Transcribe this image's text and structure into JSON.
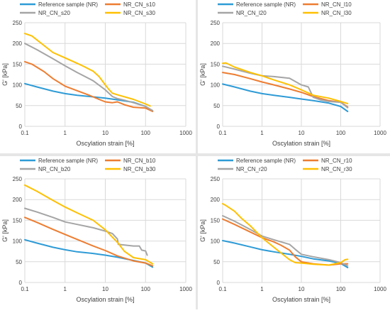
{
  "colors": {
    "reference": "#2E9BD6",
    "series10": "#ED7D31",
    "series20": "#A5A5A5",
    "series30": "#FFC000",
    "grid": "#D9D9D9",
    "text": "#404040"
  },
  "chart_data": [
    {
      "type": "line",
      "xscale": "log",
      "xlabel": "Oscylation strain [%]",
      "ylabel": "G' [kPa]",
      "xlim": [
        0.1,
        1000
      ],
      "ylim": [
        0,
        250
      ],
      "xticks": [
        "0.1",
        "1",
        "10",
        "100",
        "1000"
      ],
      "yticks": [
        "0",
        "50",
        "100",
        "150",
        "200",
        "250"
      ],
      "series": [
        {
          "name": "Reference sample (NR)",
          "color": "#2E9BD6",
          "x": [
            0.1,
            0.2,
            0.5,
            1,
            2,
            5,
            10,
            20,
            50,
            100,
            150
          ],
          "y": [
            103,
            95,
            85,
            79,
            75,
            71,
            68,
            64,
            58,
            48,
            37
          ]
        },
        {
          "name": "NR_CN_s10",
          "color": "#ED7D31",
          "x": [
            0.1,
            0.15,
            0.3,
            0.5,
            1,
            2,
            4,
            7,
            10,
            15,
            20,
            30,
            50,
            100,
            150
          ],
          "y": [
            156,
            150,
            132,
            115,
            97,
            86,
            75,
            65,
            59,
            57,
            59,
            52,
            46,
            44,
            36
          ]
        },
        {
          "name": "NR_CN_s20",
          "color": "#A5A5A5",
          "x": [
            0.1,
            0.2,
            0.5,
            1,
            2,
            5,
            10,
            15,
            20,
            30,
            50,
            100,
            150
          ],
          "y": [
            200,
            185,
            163,
            146,
            130,
            110,
            88,
            72,
            67,
            63,
            57,
            48,
            38
          ]
        },
        {
          "name": "NR_CN_s30",
          "color": "#FFC000",
          "x": [
            0.1,
            0.15,
            0.3,
            0.5,
            1,
            2,
            3,
            5,
            7,
            10,
            12,
            15,
            20,
            50,
            100,
            130
          ],
          "y": [
            224,
            218,
            195,
            178,
            165,
            152,
            144,
            133,
            120,
            100,
            90,
            80,
            76,
            65,
            54,
            49
          ]
        }
      ]
    },
    {
      "type": "line",
      "xscale": "log",
      "xlabel": "Oscylation strain [%]",
      "ylabel": "G' [kPa]",
      "xlim": [
        0.1,
        1000
      ],
      "ylim": [
        0,
        250
      ],
      "xticks": [
        "0.1",
        "1",
        "10",
        "100",
        "1000"
      ],
      "yticks": [
        "0",
        "50",
        "100",
        "150",
        "200",
        "250"
      ],
      "series": [
        {
          "name": "Reference sample (NR)",
          "color": "#2E9BD6",
          "x": [
            0.1,
            0.2,
            0.5,
            1,
            2,
            5,
            10,
            20,
            50,
            100,
            150
          ],
          "y": [
            102,
            95,
            85,
            79,
            75,
            70,
            66,
            62,
            56,
            48,
            36
          ]
        },
        {
          "name": "NR_CN_l10",
          "color": "#ED7D31",
          "x": [
            0.1,
            0.2,
            0.5,
            1,
            2,
            5,
            10,
            20,
            50,
            100,
            150
          ],
          "y": [
            130,
            125,
            115,
            107,
            100,
            90,
            82,
            72,
            62,
            58,
            47
          ]
        },
        {
          "name": "NR_CN_l20",
          "color": "#A5A5A5",
          "x": [
            0.1,
            0.2,
            0.5,
            1,
            2,
            5,
            10,
            15,
            20,
            30,
            50,
            100,
            150
          ],
          "y": [
            145,
            138,
            128,
            122,
            120,
            116,
            100,
            95,
            70,
            64,
            60,
            58,
            45
          ]
        },
        {
          "name": "NR_CN_l30",
          "color": "#FFC000",
          "x": [
            0.1,
            0.12,
            0.2,
            0.5,
            1,
            2,
            5,
            10,
            20,
            50,
            100,
            150
          ],
          "y": [
            152,
            153,
            143,
            130,
            122,
            112,
            100,
            88,
            75,
            68,
            60,
            55
          ]
        }
      ]
    },
    {
      "type": "line",
      "xscale": "log",
      "xlabel": "Oscylation strain [%]",
      "ylabel": "G' [kPa]",
      "xlim": [
        0.1,
        1000
      ],
      "ylim": [
        0,
        250
      ],
      "xticks": [
        "0.1",
        "1",
        "10",
        "100",
        "1000"
      ],
      "yticks": [
        "0",
        "50",
        "100",
        "150",
        "200",
        "250"
      ],
      "series": [
        {
          "name": "Reference sample (NR)",
          "color": "#2E9BD6",
          "x": [
            0.1,
            0.2,
            0.5,
            1,
            2,
            5,
            10,
            20,
            50,
            100,
            150
          ],
          "y": [
            103,
            95,
            85,
            79,
            74,
            70,
            66,
            61,
            53,
            47,
            37
          ]
        },
        {
          "name": "NR_CN_b10",
          "color": "#ED7D31",
          "x": [
            0.1,
            0.2,
            0.5,
            1,
            2,
            5,
            10,
            20,
            50,
            100,
            150
          ],
          "y": [
            157,
            145,
            128,
            116,
            104,
            88,
            77,
            64,
            52,
            47,
            40
          ]
        },
        {
          "name": "NR_CN_b20",
          "color": "#A5A5A5",
          "x": [
            0.1,
            0.2,
            0.5,
            1,
            2,
            5,
            10,
            15,
            20,
            21,
            50,
            70,
            80,
            100,
            110
          ],
          "y": [
            179,
            170,
            157,
            146,
            140,
            132,
            124,
            118,
            105,
            92,
            88,
            88,
            78,
            76,
            66
          ]
        },
        {
          "name": "NR_CN_b30",
          "color": "#FFC000",
          "x": [
            0.1,
            0.2,
            0.5,
            1,
            2,
            5,
            10,
            20,
            30,
            50,
            100,
            150
          ],
          "y": [
            235,
            220,
            198,
            182,
            168,
            150,
            127,
            97,
            75,
            60,
            55,
            45
          ]
        }
      ]
    },
    {
      "type": "line",
      "xscale": "log",
      "xlabel": "Oscylation strain [%]",
      "ylabel": "G' [kPa]",
      "xlim": [
        0.1,
        1000
      ],
      "ylim": [
        0,
        250
      ],
      "xticks": [
        "0.1",
        "1",
        "10",
        "100",
        "1000"
      ],
      "yticks": [
        "0",
        "50",
        "100",
        "150",
        "200",
        "250"
      ],
      "series": [
        {
          "name": "Reference sample (NR)",
          "color": "#2E9BD6",
          "x": [
            0.1,
            0.2,
            0.5,
            1,
            2,
            5,
            10,
            20,
            50,
            100,
            150
          ],
          "y": [
            101,
            95,
            86,
            79,
            74,
            68,
            63,
            57,
            52,
            46,
            36
          ]
        },
        {
          "name": "NR_CN_r10",
          "color": "#ED7D31",
          "x": [
            0.1,
            0.2,
            0.5,
            1,
            2,
            3,
            5,
            7,
            10,
            20,
            50,
            100,
            150
          ],
          "y": [
            153,
            140,
            122,
            108,
            98,
            90,
            78,
            62,
            50,
            45,
            42,
            45,
            45
          ]
        },
        {
          "name": "NR_CN_r20",
          "color": "#A5A5A5",
          "x": [
            0.1,
            0.2,
            0.5,
            1,
            2,
            5,
            7,
            10,
            20,
            50,
            100,
            150
          ],
          "y": [
            161,
            148,
            128,
            112,
            103,
            92,
            80,
            68,
            62,
            55,
            48,
            40
          ]
        },
        {
          "name": "NR_CN_r30",
          "color": "#FFC000",
          "x": [
            0.1,
            0.12,
            0.2,
            0.3,
            0.5,
            1,
            2,
            5,
            7,
            10,
            20,
            50,
            100,
            130,
            150
          ],
          "y": [
            190,
            186,
            172,
            155,
            137,
            108,
            85,
            55,
            48,
            47,
            44,
            42,
            48,
            55,
            56
          ]
        }
      ]
    }
  ]
}
